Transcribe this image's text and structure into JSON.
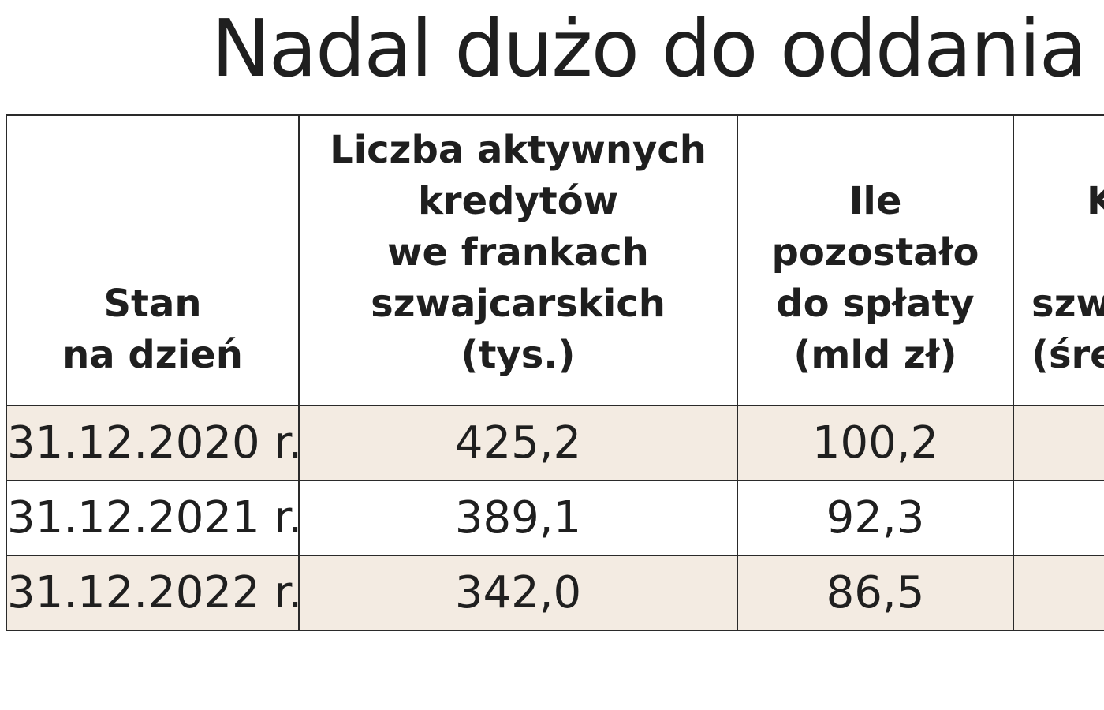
{
  "title": "Nadal dużo do oddania",
  "table": {
    "columns": [
      {
        "lines": [
          "Stan",
          "na dzień"
        ]
      },
      {
        "lines": [
          "Liczba aktywnych",
          "kredytów",
          "we frankach",
          "szwajcarskich",
          "(tys.)"
        ]
      },
      {
        "lines": [
          "Ile",
          "pozostało",
          "do spłaty",
          "(mld zł)"
        ]
      },
      {
        "lines": [
          "K",
          "",
          "szw",
          "(śre"
        ]
      }
    ],
    "rows": [
      {
        "date": "31.12.2020 r.",
        "count": "425,2",
        "remaining": "100,2",
        "col4": ""
      },
      {
        "date": "31.12.2021 r.",
        "count": "389,1",
        "remaining": "92,3",
        "col4": ""
      },
      {
        "date": "31.12.2022 r.",
        "count": "342,0",
        "remaining": "86,5",
        "col4": ""
      }
    ]
  }
}
